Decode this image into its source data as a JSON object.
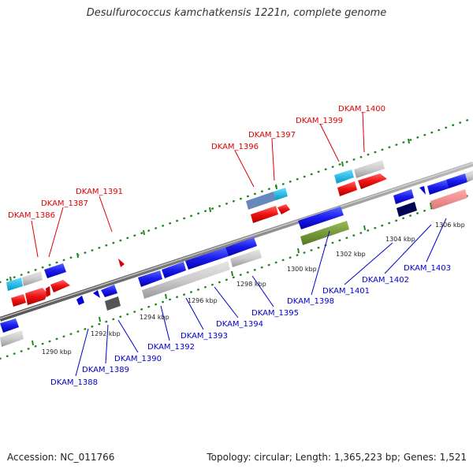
{
  "title": "Desulfurococcus kamchatkensis 1221n, complete genome",
  "footer": {
    "accession": "Accession: NC_011766",
    "summary": "Topology: circular; Length: 1,365,223 bp; Genes: 1,521"
  },
  "colors": {
    "forward_label": "#dd0000",
    "reverse_label": "#0000cc",
    "backbone": "#777777",
    "tick": "#228822"
  },
  "scale_labels": [
    "1290 kbp",
    "1292 kbp",
    "1294 kbp",
    "1296 kbp",
    "1298 kbp",
    "1300 kbp",
    "1302 kbp",
    "1304 kbp",
    "1306 kbp"
  ],
  "forward_genes": [
    "DKAM_1386",
    "DKAM_1387",
    "DKAM_1391",
    "DKAM_1396",
    "DKAM_1397",
    "DKAM_1399",
    "DKAM_1400"
  ],
  "reverse_genes": [
    "DKAM_1388",
    "DKAM_1389",
    "DKAM_1390",
    "DKAM_1392",
    "DKAM_1393",
    "DKAM_1394",
    "DKAM_1395",
    "DKAM_1398",
    "DKAM_1401",
    "DKAM_1402",
    "DKAM_1403"
  ]
}
